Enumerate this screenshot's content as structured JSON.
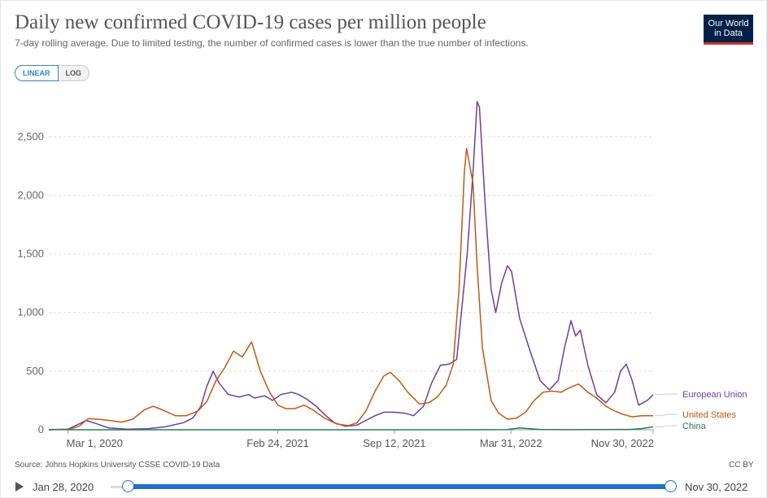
{
  "header": {
    "title": "Daily new confirmed COVID-19 cases per million people",
    "subtitle": "7-day rolling average. Due to limited testing, the number of confirmed cases is lower than the true number of infections.",
    "logo_line1": "Our World",
    "logo_line2": "in Data"
  },
  "toggle": {
    "linear": "LINEAR",
    "log": "LOG",
    "selected": "LINEAR"
  },
  "footer": {
    "source": "Source: Johns Hopkins University CSSE COVID-19 Data",
    "license": "CC BY"
  },
  "timeline": {
    "start": "Jan 28, 2020",
    "end": "Nov 30, 2022"
  },
  "colors": {
    "eu": "#6b3fa0",
    "us": "#c05917",
    "china": "#2a7a55",
    "accent": "#1f6fcf"
  },
  "chart_data": {
    "type": "line",
    "title": "Daily new confirmed COVID-19 cases per million people",
    "x_type": "date",
    "xlim": [
      "2020-01-28",
      "2022-11-30"
    ],
    "ylim": [
      0,
      2800
    ],
    "y_ticks": [
      0,
      500,
      1000,
      1500,
      2000,
      2500
    ],
    "y_tick_labels": [
      "0",
      "500",
      "1,000",
      "1,500",
      "2,000",
      "2,500"
    ],
    "x_ticks": [
      "2020-03-01",
      "2021-02-24",
      "2021-09-12",
      "2022-03-31",
      "2022-11-30"
    ],
    "x_tick_labels": [
      "Mar 1, 2020",
      "Feb 24, 2021",
      "Sep 12, 2021",
      "Mar 31, 2022",
      "Nov 30, 2022"
    ],
    "grid": true,
    "legend": "right (end-of-line labels)",
    "series": [
      {
        "name": "European Union",
        "color": "#6b3fa0",
        "points": [
          [
            "2020-01-28",
            0
          ],
          [
            "2020-03-01",
            5
          ],
          [
            "2020-03-20",
            50
          ],
          [
            "2020-04-01",
            80
          ],
          [
            "2020-04-20",
            50
          ],
          [
            "2020-05-10",
            15
          ],
          [
            "2020-06-10",
            5
          ],
          [
            "2020-07-15",
            8
          ],
          [
            "2020-08-15",
            25
          ],
          [
            "2020-09-15",
            60
          ],
          [
            "2020-10-01",
            100
          ],
          [
            "2020-10-15",
            200
          ],
          [
            "2020-10-25",
            370
          ],
          [
            "2020-11-05",
            500
          ],
          [
            "2020-11-15",
            400
          ],
          [
            "2020-12-01",
            300
          ],
          [
            "2020-12-20",
            280
          ],
          [
            "2021-01-05",
            300
          ],
          [
            "2021-01-15",
            270
          ],
          [
            "2021-02-01",
            290
          ],
          [
            "2021-02-15",
            250
          ],
          [
            "2021-03-01",
            300
          ],
          [
            "2021-03-20",
            320
          ],
          [
            "2021-04-01",
            300
          ],
          [
            "2021-04-15",
            260
          ],
          [
            "2021-05-01",
            200
          ],
          [
            "2021-05-15",
            130
          ],
          [
            "2021-06-01",
            60
          ],
          [
            "2021-06-20",
            30
          ],
          [
            "2021-07-10",
            40
          ],
          [
            "2021-07-25",
            80
          ],
          [
            "2021-08-10",
            120
          ],
          [
            "2021-08-25",
            150
          ],
          [
            "2021-09-12",
            150
          ],
          [
            "2021-10-01",
            140
          ],
          [
            "2021-10-15",
            120
          ],
          [
            "2021-11-01",
            200
          ],
          [
            "2021-11-15",
            400
          ],
          [
            "2021-11-30",
            550
          ],
          [
            "2021-12-15",
            560
          ],
          [
            "2021-12-28",
            600
          ],
          [
            "2022-01-05",
            1000
          ],
          [
            "2022-01-15",
            1500
          ],
          [
            "2022-01-25",
            2200
          ],
          [
            "2022-02-01",
            2800
          ],
          [
            "2022-02-05",
            2750
          ],
          [
            "2022-02-15",
            1900
          ],
          [
            "2022-02-25",
            1200
          ],
          [
            "2022-03-05",
            1000
          ],
          [
            "2022-03-15",
            1250
          ],
          [
            "2022-03-25",
            1400
          ],
          [
            "2022-04-01",
            1350
          ],
          [
            "2022-04-15",
            950
          ],
          [
            "2022-05-01",
            700
          ],
          [
            "2022-05-20",
            420
          ],
          [
            "2022-06-05",
            340
          ],
          [
            "2022-06-20",
            420
          ],
          [
            "2022-07-01",
            700
          ],
          [
            "2022-07-12",
            930
          ],
          [
            "2022-07-20",
            800
          ],
          [
            "2022-07-28",
            850
          ],
          [
            "2022-08-10",
            550
          ],
          [
            "2022-08-25",
            300
          ],
          [
            "2022-09-10",
            230
          ],
          [
            "2022-09-25",
            320
          ],
          [
            "2022-10-05",
            500
          ],
          [
            "2022-10-15",
            560
          ],
          [
            "2022-10-25",
            420
          ],
          [
            "2022-11-05",
            210
          ],
          [
            "2022-11-20",
            250
          ],
          [
            "2022-11-30",
            300
          ]
        ]
      },
      {
        "name": "United States",
        "color": "#c05917",
        "points": [
          [
            "2020-01-28",
            0
          ],
          [
            "2020-03-01",
            2
          ],
          [
            "2020-03-20",
            30
          ],
          [
            "2020-04-05",
            95
          ],
          [
            "2020-04-20",
            90
          ],
          [
            "2020-05-10",
            80
          ],
          [
            "2020-06-01",
            65
          ],
          [
            "2020-06-20",
            90
          ],
          [
            "2020-07-10",
            170
          ],
          [
            "2020-07-25",
            200
          ],
          [
            "2020-08-10",
            170
          ],
          [
            "2020-09-01",
            120
          ],
          [
            "2020-09-20",
            120
          ],
          [
            "2020-10-10",
            160
          ],
          [
            "2020-10-25",
            240
          ],
          [
            "2020-11-10",
            420
          ],
          [
            "2020-11-25",
            530
          ],
          [
            "2020-12-10",
            670
          ],
          [
            "2020-12-25",
            620
          ],
          [
            "2021-01-10",
            750
          ],
          [
            "2021-01-25",
            500
          ],
          [
            "2021-02-10",
            320
          ],
          [
            "2021-02-24",
            210
          ],
          [
            "2021-03-10",
            180
          ],
          [
            "2021-03-25",
            180
          ],
          [
            "2021-04-10",
            210
          ],
          [
            "2021-04-25",
            170
          ],
          [
            "2021-05-15",
            100
          ],
          [
            "2021-06-05",
            50
          ],
          [
            "2021-06-25",
            35
          ],
          [
            "2021-07-10",
            60
          ],
          [
            "2021-07-25",
            160
          ],
          [
            "2021-08-10",
            330
          ],
          [
            "2021-08-25",
            460
          ],
          [
            "2021-09-05",
            490
          ],
          [
            "2021-09-20",
            420
          ],
          [
            "2021-10-05",
            320
          ],
          [
            "2021-10-25",
            220
          ],
          [
            "2021-11-10",
            230
          ],
          [
            "2021-11-25",
            280
          ],
          [
            "2021-12-10",
            380
          ],
          [
            "2021-12-22",
            560
          ],
          [
            "2022-01-01",
            1200
          ],
          [
            "2022-01-10",
            2200
          ],
          [
            "2022-01-14",
            2400
          ],
          [
            "2022-01-25",
            2100
          ],
          [
            "2022-02-01",
            1400
          ],
          [
            "2022-02-10",
            700
          ],
          [
            "2022-02-25",
            250
          ],
          [
            "2022-03-10",
            140
          ],
          [
            "2022-03-25",
            90
          ],
          [
            "2022-04-10",
            100
          ],
          [
            "2022-04-25",
            150
          ],
          [
            "2022-05-10",
            250
          ],
          [
            "2022-05-25",
            320
          ],
          [
            "2022-06-10",
            330
          ],
          [
            "2022-06-25",
            320
          ],
          [
            "2022-07-10",
            360
          ],
          [
            "2022-07-25",
            390
          ],
          [
            "2022-08-10",
            320
          ],
          [
            "2022-08-25",
            270
          ],
          [
            "2022-09-10",
            200
          ],
          [
            "2022-09-25",
            160
          ],
          [
            "2022-10-10",
            130
          ],
          [
            "2022-10-25",
            110
          ],
          [
            "2022-11-10",
            120
          ],
          [
            "2022-11-30",
            120
          ]
        ]
      },
      {
        "name": "China",
        "color": "#2a7a55",
        "points": [
          [
            "2020-01-28",
            2
          ],
          [
            "2020-02-10",
            2.5
          ],
          [
            "2020-03-01",
            1
          ],
          [
            "2020-04-01",
            0.1
          ],
          [
            "2021-01-01",
            0.1
          ],
          [
            "2022-01-01",
            0.2
          ],
          [
            "2022-03-25",
            2
          ],
          [
            "2022-04-15",
            15
          ],
          [
            "2022-05-01",
            10
          ],
          [
            "2022-05-20",
            3
          ],
          [
            "2022-07-01",
            1
          ],
          [
            "2022-09-01",
            2
          ],
          [
            "2022-10-20",
            3
          ],
          [
            "2022-11-10",
            10
          ],
          [
            "2022-11-30",
            25
          ]
        ]
      }
    ]
  }
}
